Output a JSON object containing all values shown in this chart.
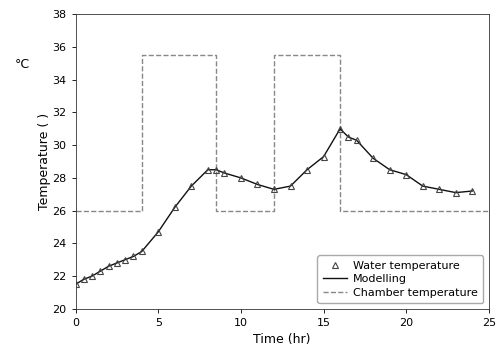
{
  "title": "",
  "xlabel": "Time (hr)",
  "xlim": [
    0,
    25
  ],
  "ylim": [
    20,
    38
  ],
  "yticks": [
    20,
    22,
    24,
    26,
    28,
    30,
    32,
    34,
    36,
    38
  ],
  "xticks": [
    0,
    5,
    10,
    15,
    20,
    25
  ],
  "water_temp_x": [
    0,
    0.5,
    1,
    1.5,
    2,
    2.5,
    3,
    3.5,
    4,
    5,
    6,
    7,
    8,
    8.5,
    9,
    10,
    11,
    12,
    13,
    14,
    15,
    16,
    16.5,
    17,
    18,
    19,
    20,
    21,
    22,
    23,
    24
  ],
  "water_temp_y": [
    21.5,
    21.8,
    22.0,
    22.3,
    22.6,
    22.8,
    23.0,
    23.2,
    23.5,
    24.7,
    26.2,
    27.5,
    28.5,
    28.5,
    28.3,
    28.0,
    27.6,
    27.3,
    27.5,
    28.5,
    29.3,
    31.0,
    30.5,
    30.3,
    29.2,
    28.5,
    28.2,
    27.5,
    27.3,
    27.1,
    27.2
  ],
  "model_x": [
    0,
    0.5,
    1,
    1.5,
    2,
    2.5,
    3,
    3.5,
    4,
    5,
    6,
    7,
    8,
    8.5,
    9,
    10,
    11,
    12,
    13,
    14,
    15,
    16,
    16.5,
    17,
    18,
    19,
    20,
    21,
    22,
    23,
    24
  ],
  "model_y": [
    21.5,
    21.8,
    22.0,
    22.3,
    22.6,
    22.8,
    23.0,
    23.2,
    23.5,
    24.7,
    26.2,
    27.5,
    28.5,
    28.5,
    28.3,
    28.0,
    27.6,
    27.3,
    27.5,
    28.5,
    29.3,
    31.0,
    30.5,
    30.3,
    29.2,
    28.5,
    28.2,
    27.5,
    27.3,
    27.1,
    27.2
  ],
  "chamber_x": [
    0,
    4,
    4,
    8.5,
    8.5,
    12,
    12,
    16,
    16,
    16.5,
    16.5,
    25
  ],
  "chamber_y": [
    26,
    26,
    35.5,
    35.5,
    26,
    26,
    35.5,
    35.5,
    26,
    26,
    26,
    26
  ],
  "line_color": "#111111",
  "marker_color": "#444444",
  "chamber_color": "#888888",
  "background_color": "#ffffff",
  "legend_labels": [
    "Water temperature",
    "Modelling",
    "Chamber temperature"
  ],
  "fontsize_axis_label": 9,
  "fontsize_tick": 8,
  "fontsize_legend": 8,
  "fontsize_degree": 9
}
